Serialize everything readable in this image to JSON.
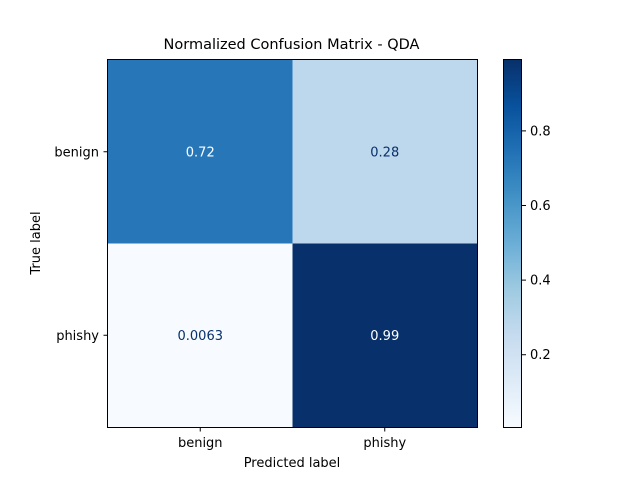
{
  "chart_data": {
    "type": "heatmap",
    "title": "Normalized Confusion Matrix - QDA",
    "xlabel": "Predicted label",
    "ylabel": "True label",
    "x_categories": [
      "benign",
      "phishy"
    ],
    "y_categories": [
      "benign",
      "phishy"
    ],
    "values": [
      [
        0.72,
        0.28
      ],
      [
        0.0063,
        0.99
      ]
    ],
    "value_labels": [
      [
        "0.72",
        "0.28"
      ],
      [
        "0.0063",
        "0.99"
      ]
    ],
    "colormap": "Blues",
    "color_range": [
      0.0063,
      0.99
    ],
    "colorbar_ticks": [
      0.2,
      0.4,
      0.6,
      0.8
    ],
    "colorbar_tick_labels": [
      "0.2",
      "0.4",
      "0.6",
      "0.8"
    ],
    "grid": false
  }
}
